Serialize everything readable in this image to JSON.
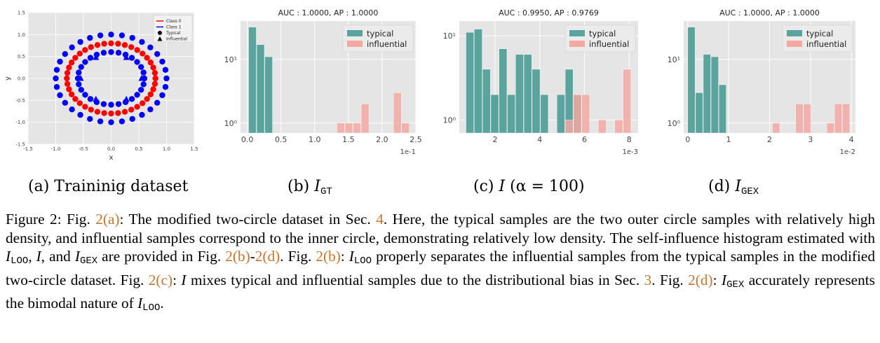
{
  "figure": {
    "subcaptions": [
      {
        "id": "a",
        "text": "(a) Traininig dataset"
      },
      {
        "id": "b",
        "prefix": "(b) ",
        "math": "I",
        "sub": "GT"
      },
      {
        "id": "c",
        "prefix": "(c) ",
        "math": "I",
        "rest": " (α = 100)"
      },
      {
        "id": "d",
        "prefix": "(d) ",
        "math": "I",
        "sub": "GEX"
      }
    ],
    "caption": {
      "label": "Figure 2:",
      "segments": [
        {
          "t": "text",
          "v": " Fig. "
        },
        {
          "t": "ref",
          "v": "2(a)"
        },
        {
          "t": "text",
          "v": ": The modified two-circle dataset in Sec. "
        },
        {
          "t": "ref",
          "v": "4"
        },
        {
          "t": "text",
          "v": ". Here, the typical samples are the two outer circle samples with relatively high density, and influential samples correspond to the inner circle, demonstrating relatively low density. The self-influence histogram estimated with "
        },
        {
          "t": "math",
          "v": "I",
          "sub": "LOO"
        },
        {
          "t": "text",
          "v": ", "
        },
        {
          "t": "math",
          "v": "I"
        },
        {
          "t": "text",
          "v": ", and "
        },
        {
          "t": "math",
          "v": "I",
          "sub": "GEX"
        },
        {
          "t": "text",
          "v": " are provided in Fig. "
        },
        {
          "t": "ref",
          "v": "2(b)"
        },
        {
          "t": "text",
          "v": "-"
        },
        {
          "t": "ref",
          "v": "2(d)"
        },
        {
          "t": "text",
          "v": ". Fig. "
        },
        {
          "t": "ref",
          "v": "2(b)"
        },
        {
          "t": "text",
          "v": ": "
        },
        {
          "t": "math",
          "v": "I",
          "sub": "LOO"
        },
        {
          "t": "text",
          "v": " properly separates the influential samples from the typical samples in the modified two-circle dataset. Fig. "
        },
        {
          "t": "ref",
          "v": "2(c)"
        },
        {
          "t": "text",
          "v": ": "
        },
        {
          "t": "math",
          "v": "I"
        },
        {
          "t": "text",
          "v": " mixes typical and influential samples due to the distributional bias in Sec. "
        },
        {
          "t": "ref",
          "v": "3"
        },
        {
          "t": "text",
          "v": ". Fig. "
        },
        {
          "t": "ref",
          "v": "2(d)"
        },
        {
          "t": "text",
          "v": ": "
        },
        {
          "t": "math",
          "v": "I",
          "sub": "GEX"
        },
        {
          "t": "text",
          "v": " accurately represents the bimodal nature of "
        },
        {
          "t": "math",
          "v": "I",
          "sub": "LOO"
        },
        {
          "t": "text",
          "v": "."
        }
      ]
    }
  },
  "colors": {
    "typical": "#5ba39d",
    "influential": "#f3a8a2",
    "class0": "#ff0000",
    "class1": "#0000ff",
    "plot_bg": "#e5e5e5"
  },
  "chart_data": [
    {
      "id": "a",
      "type": "scatter",
      "xlabel": "x",
      "ylabel": "y",
      "xlim": [
        -1.5,
        1.5
      ],
      "ylim": [
        -1.5,
        1.5
      ],
      "xticks": [
        "-1.5",
        "-1.0",
        "-0.5",
        "0.0",
        "0.5",
        "1.0",
        "1.5"
      ],
      "yticks": [
        "-1.5",
        "-1.0",
        "-0.5",
        "0.0",
        "0.5",
        "1.0",
        "1.5"
      ],
      "legend": [
        "Class 0",
        "Class 1",
        "Typical",
        "Influential"
      ],
      "legend_position": "top-right",
      "series": [
        {
          "class": "Class 1",
          "kind": "Typical",
          "radius": 1.0,
          "count": 32
        },
        {
          "class": "Class 0",
          "kind": "Typical",
          "radius": 0.8,
          "count": 40
        },
        {
          "class": "Class 1",
          "kind": "Typical",
          "radius": 0.6,
          "count": 28
        },
        {
          "class": "Class 1",
          "kind": "Influential",
          "radius": 0.55,
          "angles_deg": [
            60,
            120,
            180,
            240,
            300,
            0
          ]
        }
      ]
    },
    {
      "id": "b",
      "type": "bar",
      "title": "AUC : 1.0000, AP : 1.0000",
      "yscale": "log",
      "ylim": [
        0.7,
        40
      ],
      "xlim": [
        -0.1,
        2.5
      ],
      "xticks": [
        "0.0",
        "0.5",
        "1.0",
        "1.5",
        "2.0",
        "2.5"
      ],
      "xtick_values": [
        0,
        0.5,
        1.0,
        1.5,
        2.0,
        2.5
      ],
      "offset_text": "1e-1",
      "yticks": [
        {
          "v": 1,
          "label": "10⁰"
        },
        {
          "v": 10,
          "label": "10¹"
        }
      ],
      "legend": [
        "typical",
        "influential"
      ],
      "legend_position": "top-right",
      "bin_width": 0.12,
      "series": [
        {
          "name": "typical",
          "bins": [
            [
              0.02,
              32
            ],
            [
              0.14,
              17
            ],
            [
              0.26,
              11
            ]
          ]
        },
        {
          "name": "influential",
          "bins": [
            [
              1.33,
              1
            ],
            [
              1.45,
              1
            ],
            [
              1.57,
              1
            ],
            [
              1.69,
              2
            ],
            [
              2.17,
              3
            ],
            [
              2.29,
              1
            ]
          ]
        }
      ]
    },
    {
      "id": "c",
      "type": "bar",
      "title": "AUC : 0.9950, AP : 0.9769",
      "yscale": "log",
      "ylim": [
        0.7,
        15
      ],
      "xlim": [
        0.4,
        8.4
      ],
      "xticks": [
        "2",
        "4",
        "6",
        "8"
      ],
      "xtick_values": [
        2,
        4,
        6,
        8
      ],
      "offset_text": "1e-3",
      "yticks": [
        {
          "v": 1,
          "label": "10⁰"
        },
        {
          "v": 10,
          "label": "10¹"
        }
      ],
      "legend": [
        "typical",
        "influential"
      ],
      "legend_position": "top-right",
      "bin_width": 0.37,
      "series": [
        {
          "name": "typical",
          "bins": [
            [
              0.7,
              11
            ],
            [
              1.07,
              12
            ],
            [
              1.44,
              4
            ],
            [
              1.81,
              2
            ],
            [
              2.18,
              7
            ],
            [
              2.55,
              2
            ],
            [
              2.92,
              6
            ],
            [
              3.29,
              6
            ],
            [
              3.66,
              4
            ],
            [
              4.03,
              2
            ],
            [
              4.77,
              2
            ],
            [
              5.14,
              4
            ],
            [
              5.51,
              2
            ]
          ]
        },
        {
          "name": "influential",
          "bins": [
            [
              5.14,
              1
            ],
            [
              5.51,
              2
            ],
            [
              5.88,
              2
            ],
            [
              6.62,
              1
            ],
            [
              7.36,
              1
            ],
            [
              7.73,
              4
            ]
          ]
        }
      ]
    },
    {
      "id": "d",
      "type": "bar",
      "title": "AUC : 1.0000, AP : 1.0000",
      "yscale": "log",
      "ylim": [
        0.7,
        40
      ],
      "xlim": [
        -0.1,
        4.1
      ],
      "xticks": [
        "0",
        "1",
        "2",
        "3",
        "4"
      ],
      "xtick_values": [
        0,
        1,
        2,
        3,
        4
      ],
      "offset_text": "1e-2",
      "yticks": [
        {
          "v": 1,
          "label": "10⁰"
        },
        {
          "v": 10,
          "label": "10¹"
        }
      ],
      "legend": [
        "typical",
        "influential"
      ],
      "legend_position": "top-right",
      "bin_width": 0.19,
      "series": [
        {
          "name": "typical",
          "bins": [
            [
              0.0,
              32
            ],
            [
              0.19,
              3
            ],
            [
              0.38,
              12
            ],
            [
              0.57,
              11
            ],
            [
              0.76,
              4
            ]
          ]
        },
        {
          "name": "influential",
          "bins": [
            [
              2.07,
              1
            ],
            [
              2.64,
              2
            ],
            [
              2.83,
              2
            ],
            [
              3.4,
              1
            ],
            [
              3.59,
              2
            ],
            [
              3.78,
              2
            ]
          ]
        }
      ]
    }
  ]
}
